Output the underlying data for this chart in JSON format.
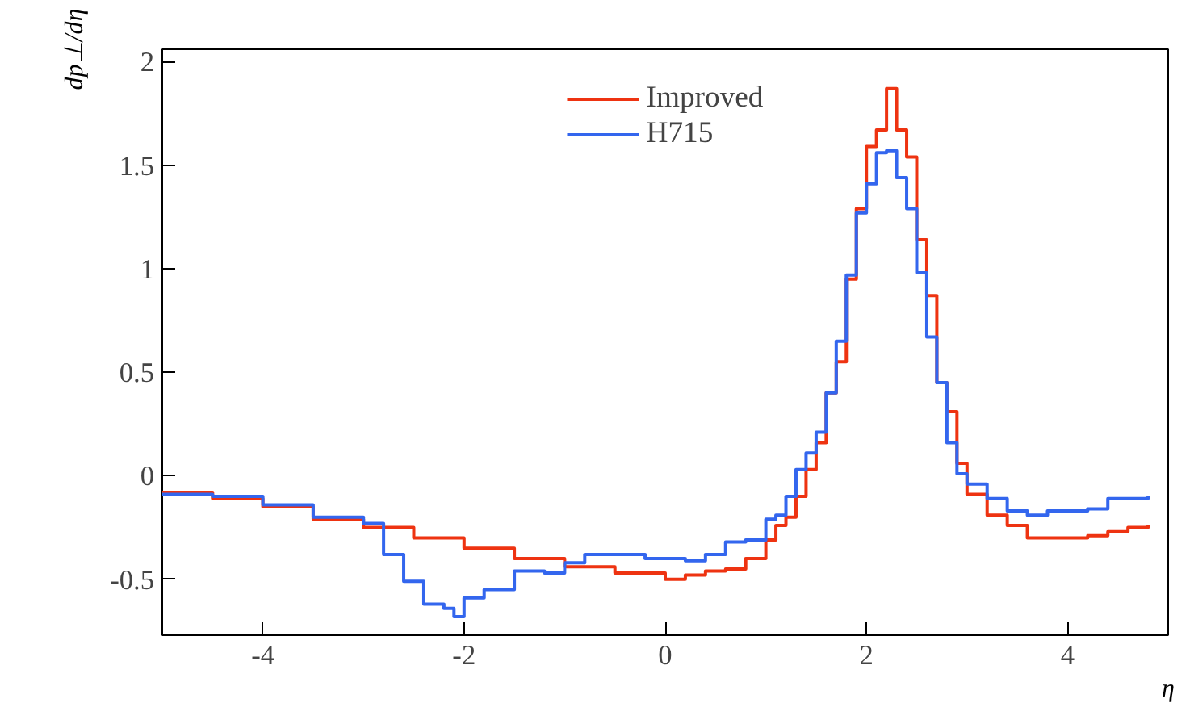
{
  "chart_data": {
    "type": "step",
    "xlabel": "η",
    "ylabel": "dp⊥/dη",
    "xlim": [
      -5,
      5
    ],
    "ylim": [
      -0.77,
      2.06
    ],
    "xticks": [
      -4,
      -2,
      0,
      2,
      4
    ],
    "yticks": [
      -0.5,
      0,
      0.5,
      1,
      1.5,
      2
    ],
    "grid": false,
    "legend": "top",
    "line_style": "solid",
    "marker": "none",
    "series": [
      {
        "name": "Improved",
        "color": "#ee3311",
        "x": [
          -5,
          -4.5,
          -4,
          -3.5,
          -3,
          -2.5,
          -2,
          -1.5,
          -1,
          -0.5,
          0,
          0.2,
          0.4,
          0.6,
          0.8,
          1.0,
          1.1,
          1.2,
          1.3,
          1.4,
          1.5,
          1.6,
          1.7,
          1.8,
          1.9,
          2.0,
          2.1,
          2.2,
          2.3,
          2.4,
          2.5,
          2.6,
          2.7,
          2.8,
          2.9,
          3.0,
          3.2,
          3.4,
          3.6,
          3.8,
          4.0,
          4.2,
          4.4,
          4.6,
          4.8
        ],
        "values": [
          -0.08,
          -0.11,
          -0.15,
          -0.21,
          -0.25,
          -0.3,
          -0.35,
          -0.4,
          -0.44,
          -0.47,
          -0.5,
          -0.48,
          -0.46,
          -0.45,
          -0.4,
          -0.31,
          -0.24,
          -0.2,
          -0.1,
          0.03,
          0.16,
          0.4,
          0.55,
          0.95,
          1.29,
          1.59,
          1.67,
          1.87,
          1.67,
          1.54,
          1.14,
          0.87,
          0.45,
          0.31,
          0.06,
          -0.09,
          -0.19,
          -0.24,
          -0.3,
          -0.3,
          -0.3,
          -0.29,
          -0.27,
          -0.25,
          -0.24
        ]
      },
      {
        "name": "H715",
        "color": "#3366ee",
        "x": [
          -5,
          -4.5,
          -4,
          -3.5,
          -3,
          -2.8,
          -2.6,
          -2.4,
          -2.2,
          -2.1,
          -2,
          -1.8,
          -1.5,
          -1.2,
          -1,
          -0.8,
          -0.5,
          -0.2,
          0,
          0.2,
          0.4,
          0.6,
          0.8,
          1.0,
          1.1,
          1.2,
          1.3,
          1.4,
          1.5,
          1.6,
          1.7,
          1.8,
          1.9,
          2.0,
          2.1,
          2.2,
          2.3,
          2.4,
          2.5,
          2.6,
          2.7,
          2.8,
          2.9,
          3.0,
          3.2,
          3.4,
          3.6,
          3.8,
          4.0,
          4.2,
          4.4,
          4.6,
          4.8
        ],
        "values": [
          -0.09,
          -0.1,
          -0.14,
          -0.2,
          -0.23,
          -0.38,
          -0.51,
          -0.62,
          -0.64,
          -0.68,
          -0.59,
          -0.55,
          -0.46,
          -0.47,
          -0.42,
          -0.38,
          -0.38,
          -0.4,
          -0.4,
          -0.41,
          -0.38,
          -0.32,
          -0.31,
          -0.21,
          -0.19,
          -0.1,
          0.03,
          0.11,
          0.21,
          0.4,
          0.65,
          0.97,
          1.27,
          1.41,
          1.56,
          1.57,
          1.44,
          1.29,
          0.98,
          0.67,
          0.45,
          0.16,
          0.01,
          -0.04,
          -0.11,
          -0.17,
          -0.19,
          -0.17,
          -0.17,
          -0.16,
          -0.11,
          -0.11,
          -0.1
        ]
      }
    ]
  }
}
